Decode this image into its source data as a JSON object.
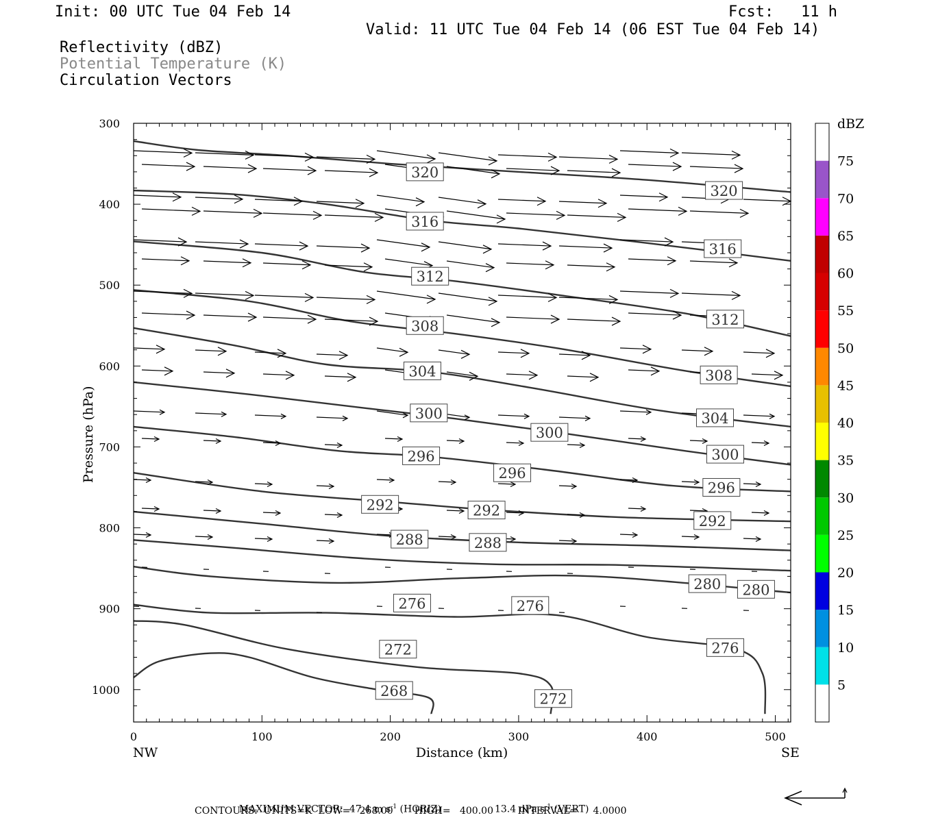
{
  "header": {
    "init": "Init: 00 UTC Tue 04 Feb 14",
    "fcst": "Fcst:   11 h",
    "valid": "Valid: 11 UTC Tue 04 Feb 14 (06 EST Tue 04 Feb 14)",
    "legend_reflectivity": "Reflectivity (dBZ)",
    "legend_theta": "Potential Temperature (K)",
    "legend_vectors": "Circulation Vectors"
  },
  "footer": {
    "max_vector": "MAXIMUM VECTOR:  47.4 m s",
    "max_vector_horiz": " (HORIZ)",
    "max_vector_vert_val": "13.4 dPa s",
    "max_vector_vert": " (VERT)",
    "contours": "CONTOURS:  UNITS=K  LOW=   268.00       HIGH=   400.00        INTERVAL=     4.0000"
  },
  "colors": {
    "contour": "#333333",
    "label_border": "#444444",
    "vector": "#000000",
    "colorbar": [
      "#ffffff",
      "#00e0e8",
      "#0090e0",
      "#0000e0",
      "#00ff00",
      "#00c800",
      "#008800",
      "#ffff00",
      "#e8c000",
      "#ff8800",
      "#ff0000",
      "#d60000",
      "#c00000",
      "#ff00ff",
      "#9955c9",
      "#ffffff"
    ]
  },
  "chart_data": {
    "type": "contour",
    "xlabel": "Distance (km)",
    "ylabel": "Pressure (hPa)",
    "xlim": [
      0,
      512
    ],
    "ylim": [
      300,
      1040
    ],
    "x_ticks": [
      0,
      100,
      200,
      300,
      400,
      500
    ],
    "x_tick_labels": [
      "0",
      "100",
      "200",
      "300",
      "400",
      "500"
    ],
    "y_ticks": [
      300,
      400,
      500,
      600,
      700,
      800,
      900,
      1000
    ],
    "y_tick_labels": [
      "300",
      "400",
      "500",
      "600",
      "700",
      "800",
      "900",
      "1000"
    ],
    "x_end_labels": {
      "left": "NW",
      "right": "SE"
    },
    "colorbar": {
      "unit": "dBZ",
      "levels": [
        5,
        10,
        15,
        20,
        25,
        30,
        35,
        40,
        45,
        50,
        55,
        60,
        65,
        70,
        75
      ]
    },
    "contours": [
      {
        "value": 320,
        "points": [
          [
            0,
            322
          ],
          [
            50,
            333
          ],
          [
            120,
            340
          ],
          [
            200,
            350
          ],
          [
            300,
            360
          ],
          [
            400,
            370
          ],
          [
            512,
            385
          ]
        ],
        "labels": [
          {
            "text": "320",
            "x": 227,
            "y": 360
          },
          {
            "text": "320",
            "x": 460,
            "y": 383
          }
        ]
      },
      {
        "value": 316,
        "points": [
          [
            0,
            383
          ],
          [
            80,
            388
          ],
          [
            150,
            400
          ],
          [
            230,
            420
          ],
          [
            300,
            430
          ],
          [
            400,
            448
          ],
          [
            512,
            470
          ]
        ],
        "labels": [
          {
            "text": "316",
            "x": 227,
            "y": 421
          },
          {
            "text": "316",
            "x": 459,
            "y": 455
          }
        ]
      },
      {
        "value": 312,
        "points": [
          [
            0,
            446
          ],
          [
            100,
            460
          ],
          [
            180,
            484
          ],
          [
            250,
            495
          ],
          [
            330,
            512
          ],
          [
            430,
            535
          ],
          [
            512,
            563
          ]
        ],
        "labels": [
          {
            "text": "312",
            "x": 231,
            "y": 489
          },
          {
            "text": "312",
            "x": 461,
            "y": 542
          }
        ]
      },
      {
        "value": 308,
        "points": [
          [
            0,
            506
          ],
          [
            90,
            520
          ],
          [
            170,
            545
          ],
          [
            250,
            560
          ],
          [
            330,
            578
          ],
          [
            430,
            606
          ],
          [
            512,
            625
          ]
        ],
        "labels": [
          {
            "text": "308",
            "x": 227,
            "y": 550
          },
          {
            "text": "308",
            "x": 456,
            "y": 611
          }
        ]
      },
      {
        "value": 304,
        "points": [
          [
            0,
            553
          ],
          [
            80,
            575
          ],
          [
            150,
            598
          ],
          [
            230,
            607
          ],
          [
            310,
            627
          ],
          [
            410,
            655
          ],
          [
            512,
            675
          ]
        ],
        "labels": [
          {
            "text": "304",
            "x": 225,
            "y": 606
          },
          {
            "text": "304",
            "x": 453,
            "y": 664
          }
        ]
      },
      {
        "value": 300,
        "points": [
          [
            0,
            620
          ],
          [
            90,
            635
          ],
          [
            180,
            652
          ],
          [
            250,
            665
          ],
          [
            330,
            682
          ],
          [
            430,
            705
          ],
          [
            512,
            722
          ]
        ],
        "labels": [
          {
            "text": "300",
            "x": 230,
            "y": 658
          },
          {
            "text": "300",
            "x": 324,
            "y": 682
          },
          {
            "text": "300",
            "x": 461,
            "y": 709
          }
        ]
      },
      {
        "value": 296,
        "points": [
          [
            0,
            675
          ],
          [
            80,
            688
          ],
          [
            160,
            705
          ],
          [
            230,
            712
          ],
          [
            320,
            728
          ],
          [
            420,
            748
          ],
          [
            512,
            755
          ]
        ],
        "labels": [
          {
            "text": "296",
            "x": 224,
            "y": 711
          },
          {
            "text": "296",
            "x": 295,
            "y": 732
          },
          {
            "text": "296",
            "x": 458,
            "y": 750
          }
        ]
      },
      {
        "value": 292,
        "points": [
          [
            0,
            732
          ],
          [
            100,
            755
          ],
          [
            200,
            768
          ],
          [
            280,
            778
          ],
          [
            380,
            787
          ],
          [
            512,
            792
          ]
        ],
        "labels": [
          {
            "text": "292",
            "x": 192,
            "y": 771
          },
          {
            "text": "292",
            "x": 275,
            "y": 778
          },
          {
            "text": "292",
            "x": 451,
            "y": 791
          }
        ]
      },
      {
        "value": 288,
        "points": [
          [
            0,
            780
          ],
          [
            100,
            795
          ],
          [
            200,
            810
          ],
          [
            300,
            818
          ],
          [
            400,
            822
          ],
          [
            512,
            828
          ]
        ],
        "labels": [
          {
            "text": "288",
            "x": 215,
            "y": 814
          },
          {
            "text": "288",
            "x": 276,
            "y": 818
          }
        ]
      },
      {
        "value": 284,
        "points": [
          [
            0,
            815
          ],
          [
            80,
            825
          ],
          [
            180,
            838
          ],
          [
            280,
            845
          ],
          [
            380,
            846
          ],
          [
            512,
            853
          ]
        ],
        "labels": []
      },
      {
        "value": 280,
        "points": [
          [
            0,
            848
          ],
          [
            60,
            860
          ],
          [
            160,
            868
          ],
          [
            260,
            862
          ],
          [
            360,
            860
          ],
          [
            512,
            880
          ]
        ],
        "labels": [
          {
            "text": "280",
            "x": 447,
            "y": 869
          },
          {
            "text": "280",
            "x": 485,
            "y": 876
          }
        ]
      },
      {
        "value": 276,
        "points": [
          [
            0,
            895
          ],
          [
            60,
            905
          ],
          [
            150,
            905
          ],
          [
            250,
            910
          ],
          [
            330,
            908
          ],
          [
            400,
            935
          ],
          [
            470,
            950
          ],
          [
            490,
            980
          ],
          [
            492,
            1030
          ]
        ],
        "labels": [
          {
            "text": "276",
            "x": 217,
            "y": 893
          },
          {
            "text": "276",
            "x": 309,
            "y": 896
          },
          {
            "text": "276",
            "x": 461,
            "y": 948
          }
        ]
      },
      {
        "value": 272,
        "points": [
          [
            0,
            915
          ],
          [
            40,
            920
          ],
          [
            120,
            950
          ],
          [
            220,
            972
          ],
          [
            300,
            980
          ],
          [
            325,
            995
          ],
          [
            325,
            1030
          ]
        ],
        "labels": [
          {
            "text": "272",
            "x": 206,
            "y": 950
          },
          {
            "text": "272",
            "x": 327,
            "y": 1011
          }
        ]
      },
      {
        "value": 268,
        "points": [
          [
            0,
            985
          ],
          [
            20,
            965
          ],
          [
            60,
            955
          ],
          [
            90,
            960
          ],
          [
            140,
            985
          ],
          [
            190,
            1000
          ],
          [
            230,
            1010
          ],
          [
            232,
            1030
          ]
        ],
        "labels": [
          {
            "text": "268",
            "x": 203,
            "y": 1001
          }
        ]
      }
    ]
  }
}
